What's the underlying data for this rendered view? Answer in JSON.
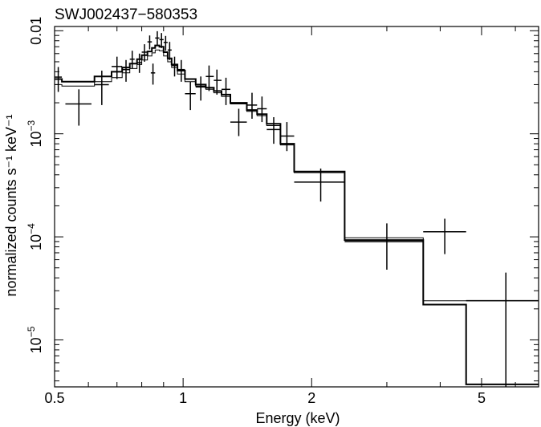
{
  "chart_data": {
    "type": "scatter",
    "title": "SWJ002437−580353",
    "xlabel": "Energy (keV)",
    "ylabel": "normalized counts s⁻¹ keV⁻¹",
    "xscale": "log",
    "yscale": "log",
    "xlim": [
      0.5,
      6.8
    ],
    "ylim": [
      3.5e-06,
      0.011
    ],
    "x_ticks": [
      {
        "value": 0.5,
        "label": "0.5"
      },
      {
        "value": 1,
        "label": "1"
      },
      {
        "value": 2,
        "label": "2"
      },
      {
        "value": 5,
        "label": "5"
      }
    ],
    "y_ticks": [
      {
        "value": 1e-05,
        "base": "10",
        "exp": "−5"
      },
      {
        "value": 0.0001,
        "base": "10",
        "exp": "−4"
      },
      {
        "value": 0.001,
        "base": "10",
        "exp": "−3"
      },
      {
        "value": 0.01,
        "label": "0.01"
      }
    ],
    "grid": false,
    "series": [
      {
        "role": "data points with error bars",
        "points": [
          {
            "x": 0.51,
            "xlo": 0.5,
            "xhi": 0.52,
            "y": 0.00355,
            "ylo": 0.00255,
            "yhi": 0.00445
          },
          {
            "x": 0.57,
            "xlo": 0.53,
            "xhi": 0.61,
            "y": 0.00195,
            "ylo": 0.0012,
            "yhi": 0.0027
          },
          {
            "x": 0.645,
            "xlo": 0.62,
            "xhi": 0.67,
            "y": 0.003,
            "ylo": 0.0019,
            "yhi": 0.0041
          },
          {
            "x": 0.7,
            "xlo": 0.68,
            "xhi": 0.72,
            "y": 0.0045,
            "ylo": 0.0034,
            "yhi": 0.0056
          },
          {
            "x": 0.735,
            "xlo": 0.72,
            "xhi": 0.75,
            "y": 0.0042,
            "ylo": 0.0032,
            "yhi": 0.0052
          },
          {
            "x": 0.76,
            "xlo": 0.75,
            "xhi": 0.77,
            "y": 0.0053,
            "ylo": 0.0043,
            "yhi": 0.0064
          },
          {
            "x": 0.79,
            "xlo": 0.78,
            "xhi": 0.8,
            "y": 0.0049,
            "ylo": 0.0039,
            "yhi": 0.006
          },
          {
            "x": 0.812,
            "xlo": 0.8,
            "xhi": 0.825,
            "y": 0.0062,
            "ylo": 0.005,
            "yhi": 0.0074
          },
          {
            "x": 0.835,
            "xlo": 0.825,
            "xhi": 0.845,
            "y": 0.0078,
            "ylo": 0.0066,
            "yhi": 0.009
          },
          {
            "x": 0.85,
            "xlo": 0.84,
            "xhi": 0.86,
            "y": 0.0039,
            "ylo": 0.003,
            "yhi": 0.0048
          },
          {
            "x": 0.87,
            "xlo": 0.86,
            "xhi": 0.88,
            "y": 0.0085,
            "ylo": 0.0072,
            "yhi": 0.0099
          },
          {
            "x": 0.89,
            "xlo": 0.88,
            "xhi": 0.9,
            "y": 0.0082,
            "ylo": 0.0068,
            "yhi": 0.0095
          },
          {
            "x": 0.91,
            "xlo": 0.9,
            "xhi": 0.92,
            "y": 0.0077,
            "ylo": 0.0064,
            "yhi": 0.0089
          },
          {
            "x": 0.93,
            "xlo": 0.92,
            "xhi": 0.94,
            "y": 0.0065,
            "ylo": 0.0052,
            "yhi": 0.0078
          },
          {
            "x": 0.955,
            "xlo": 0.94,
            "xhi": 0.97,
            "y": 0.0046,
            "ylo": 0.0036,
            "yhi": 0.0056
          },
          {
            "x": 0.99,
            "xlo": 0.97,
            "xhi": 1.01,
            "y": 0.0042,
            "ylo": 0.0032,
            "yhi": 0.0052
          },
          {
            "x": 1.04,
            "xlo": 1.01,
            "xhi": 1.07,
            "y": 0.00245,
            "ylo": 0.0017,
            "yhi": 0.0032
          },
          {
            "x": 1.1,
            "xlo": 1.07,
            "xhi": 1.13,
            "y": 0.00285,
            "ylo": 0.0021,
            "yhi": 0.0036
          },
          {
            "x": 1.15,
            "xlo": 1.13,
            "xhi": 1.18,
            "y": 0.0036,
            "ylo": 0.0026,
            "yhi": 0.0046
          },
          {
            "x": 1.2,
            "xlo": 1.18,
            "xhi": 1.23,
            "y": 0.0033,
            "ylo": 0.0024,
            "yhi": 0.0042
          },
          {
            "x": 1.26,
            "xlo": 1.23,
            "xhi": 1.29,
            "y": 0.0027,
            "ylo": 0.0019,
            "yhi": 0.0035
          },
          {
            "x": 1.35,
            "xlo": 1.29,
            "xhi": 1.41,
            "y": 0.0013,
            "ylo": 0.00095,
            "yhi": 0.00175
          },
          {
            "x": 1.45,
            "xlo": 1.41,
            "xhi": 1.49,
            "y": 0.0019,
            "ylo": 0.0014,
            "yhi": 0.0025
          },
          {
            "x": 1.53,
            "xlo": 1.49,
            "xhi": 1.57,
            "y": 0.00175,
            "ylo": 0.0013,
            "yhi": 0.0023
          },
          {
            "x": 1.63,
            "xlo": 1.57,
            "xhi": 1.69,
            "y": 0.0011,
            "ylo": 0.0008,
            "yhi": 0.00145
          },
          {
            "x": 1.75,
            "xlo": 1.69,
            "xhi": 1.82,
            "y": 0.00095,
            "ylo": 0.00068,
            "yhi": 0.0013
          },
          {
            "x": 2.1,
            "xlo": 1.82,
            "xhi": 2.39,
            "y": 0.00034,
            "ylo": 0.00022,
            "yhi": 0.00046
          },
          {
            "x": 3.0,
            "xlo": 2.39,
            "xhi": 3.65,
            "y": 9e-05,
            "ylo": 4.8e-05,
            "yhi": 0.000135
          },
          {
            "x": 4.1,
            "xlo": 3.65,
            "xhi": 4.6,
            "y": 0.000112,
            "ylo": 6.8e-05,
            "yhi": 0.00015
          },
          {
            "x": 5.7,
            "xlo": 4.6,
            "xhi": 6.8,
            "y": 2.4e-05,
            "ylo": 3.5e-06,
            "yhi": 4.5e-05
          }
        ]
      },
      {
        "role": "model (thick step)",
        "edges": [
          0.5,
          0.52,
          0.62,
          0.68,
          0.72,
          0.75,
          0.78,
          0.8,
          0.825,
          0.845,
          0.86,
          0.88,
          0.9,
          0.92,
          0.94,
          0.97,
          1.01,
          1.07,
          1.13,
          1.18,
          1.23,
          1.29,
          1.41,
          1.49,
          1.57,
          1.69,
          1.82,
          2.39,
          3.65,
          4.6,
          6.8
        ],
        "values": [
          0.0034,
          0.0032,
          0.0036,
          0.004,
          0.0044,
          0.0048,
          0.0053,
          0.0058,
          0.0063,
          0.0068,
          0.0072,
          0.007,
          0.0062,
          0.0054,
          0.0047,
          0.0041,
          0.0034,
          0.003,
          0.0028,
          0.0026,
          0.0024,
          0.002,
          0.0017,
          0.00155,
          0.00125,
          0.0008,
          0.00043,
          9.3e-05,
          2.2e-05,
          3.7e-06
        ]
      },
      {
        "role": "model (thin step)",
        "edges": [
          0.5,
          0.52,
          0.62,
          0.68,
          0.72,
          0.75,
          0.78,
          0.8,
          0.825,
          0.845,
          0.86,
          0.88,
          0.9,
          0.92,
          0.94,
          0.97,
          1.01,
          1.07,
          1.13,
          1.18,
          1.23,
          1.29,
          1.41,
          1.49,
          1.57,
          1.69,
          1.82,
          2.39,
          3.65,
          4.6,
          6.8
        ],
        "values": [
          0.003,
          0.0029,
          0.0032,
          0.0035,
          0.0039,
          0.0043,
          0.0047,
          0.0052,
          0.0057,
          0.0061,
          0.0065,
          0.0064,
          0.0057,
          0.005,
          0.0044,
          0.0038,
          0.0032,
          0.0029,
          0.0027,
          0.0025,
          0.0023,
          0.00195,
          0.00165,
          0.0015,
          0.0012,
          0.00078,
          0.00042,
          9.8e-05,
          2.4e-05,
          2.4e-05
        ]
      }
    ]
  }
}
